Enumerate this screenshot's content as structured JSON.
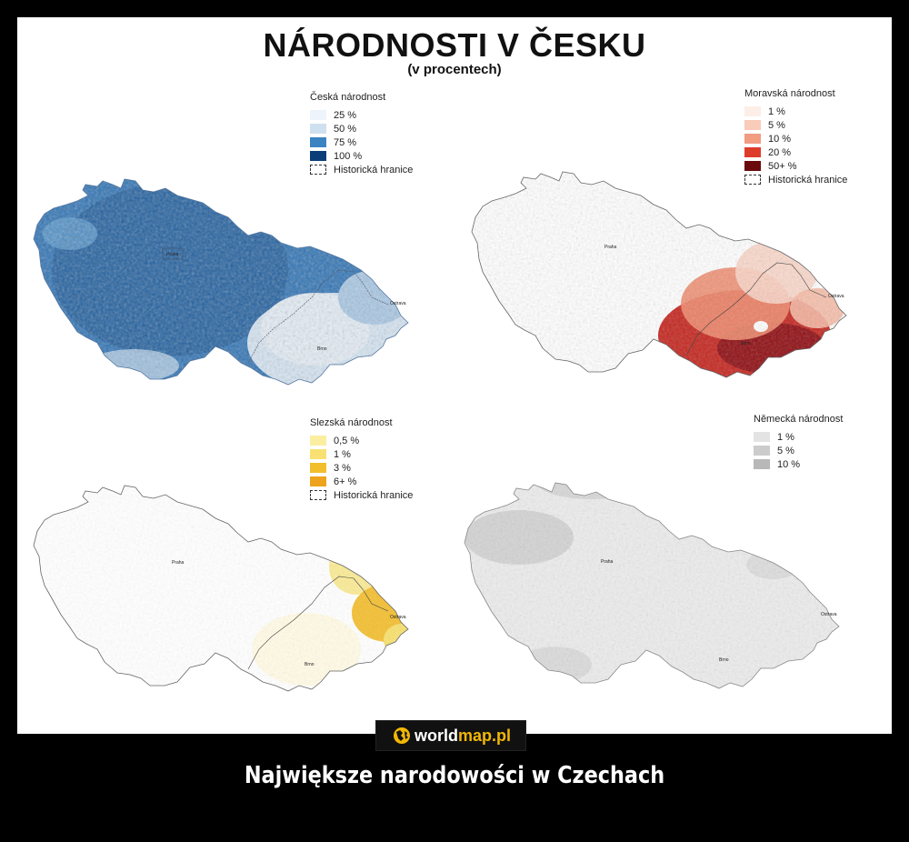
{
  "title": "NÁRODNOSTI V ČESKU",
  "subtitle": "(v procentech)",
  "maps": [
    {
      "id": "czech",
      "legend_title": "Česká národnost",
      "items": [
        {
          "label": "25 %",
          "color": "#eef4fb"
        },
        {
          "label": "50 %",
          "color": "#cfe0f0"
        },
        {
          "label": "75 %",
          "color": "#3c83c2"
        },
        {
          "label": "100 %",
          "color": "#0b3d78"
        }
      ],
      "border_label": "Historická hranice",
      "cities": [
        "Praha",
        "Brno",
        "Ostrava"
      ]
    },
    {
      "id": "moravian",
      "legend_title": "Moravská národnost",
      "items": [
        {
          "label": "1 %",
          "color": "#fdeee8"
        },
        {
          "label": "5 %",
          "color": "#f9cbb9"
        },
        {
          "label": "10 %",
          "color": "#f29c82"
        },
        {
          "label": "20 %",
          "color": "#de3b2c"
        },
        {
          "label": "50+ %",
          "color": "#6a0a0a"
        }
      ],
      "border_label": "Historická hranice",
      "cities": [
        "Praha",
        "Brno",
        "Ostrava"
      ]
    },
    {
      "id": "silesian",
      "legend_title": "Slezská národnost",
      "items": [
        {
          "label": "0,5 %",
          "color": "#fbeea0"
        },
        {
          "label": "1 %",
          "color": "#f8e172"
        },
        {
          "label": "3 %",
          "color": "#f3be2c"
        },
        {
          "label": "6+ %",
          "color": "#eda31c"
        }
      ],
      "border_label": "Historická hranice",
      "cities": [
        "Praha",
        "Brno",
        "Ostrava"
      ]
    },
    {
      "id": "german",
      "legend_title": "Německá národnost",
      "items": [
        {
          "label": "1 %",
          "color": "#e3e3e3"
        },
        {
          "label": "5 %",
          "color": "#cccccc"
        },
        {
          "label": "10 %",
          "color": "#b8b8b8"
        }
      ],
      "border_label": "",
      "cities": [
        "Praha",
        "Brno",
        "Ostrava"
      ]
    }
  ],
  "logo": {
    "part1": "world",
    "part2": "map.pl"
  },
  "caption": "Największe narodowości w Czechach"
}
